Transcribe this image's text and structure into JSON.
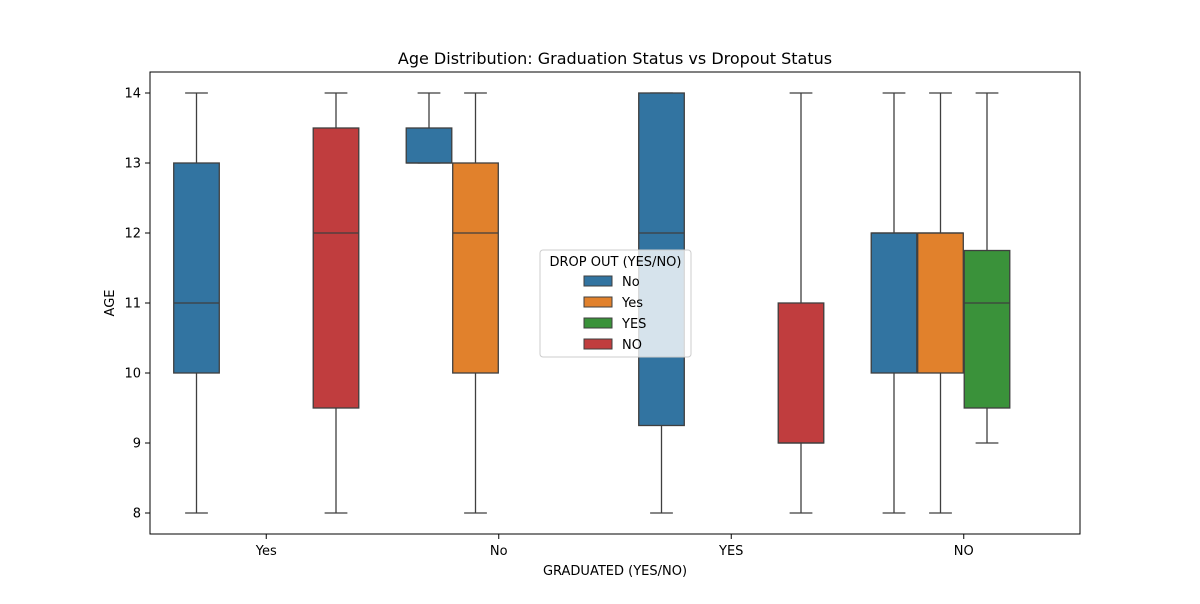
{
  "chart_data": {
    "type": "box",
    "title": "Age Distribution: Graduation Status vs Dropout Status",
    "xlabel": "GRADUATED (YES/NO)",
    "ylabel": "AGE",
    "ylim": [
      7.7,
      14.3
    ],
    "yticks": [
      8,
      9,
      10,
      11,
      12,
      13,
      14
    ],
    "categories": [
      "Yes",
      "No",
      "YES",
      "NO"
    ],
    "legend": {
      "title": "DROP OUT (YES/NO)",
      "placement": "center",
      "entries": [
        {
          "name": "No",
          "color": "#3274a1"
        },
        {
          "name": "Yes",
          "color": "#e1812c"
        },
        {
          "name": "YES",
          "color": "#3a923a"
        },
        {
          "name": "NO",
          "color": "#c03d3e"
        }
      ]
    },
    "boxes": [
      {
        "category": "Yes",
        "series": "No",
        "min": 8,
        "q1": 10,
        "median": 11,
        "q3": 13,
        "max": 14
      },
      {
        "category": "Yes",
        "series": "NO",
        "min": 8,
        "q1": 9.5,
        "median": 12,
        "q3": 13.5,
        "max": 14
      },
      {
        "category": "No",
        "series": "No",
        "min": 13,
        "q1": 13,
        "median": 13,
        "q3": 13.5,
        "max": 14
      },
      {
        "category": "No",
        "series": "Yes",
        "min": 8,
        "q1": 10,
        "median": 12,
        "q3": 13,
        "max": 14
      },
      {
        "category": "YES",
        "series": "No",
        "min": 8,
        "q1": 9.25,
        "median": 12,
        "q3": 14,
        "max": 14
      },
      {
        "category": "YES",
        "series": "NO",
        "min": 8,
        "q1": 9,
        "median": 9,
        "q3": 11,
        "max": 14
      },
      {
        "category": "NO",
        "series": "No",
        "min": 8,
        "q1": 10,
        "median": 12,
        "q3": 12,
        "max": 14
      },
      {
        "category": "NO",
        "series": "Yes",
        "min": 8,
        "q1": 10,
        "median": 12,
        "q3": 12,
        "max": 14
      },
      {
        "category": "NO",
        "series": "YES",
        "min": 9,
        "q1": 9.5,
        "median": 11,
        "q3": 11.75,
        "max": 14
      }
    ]
  }
}
